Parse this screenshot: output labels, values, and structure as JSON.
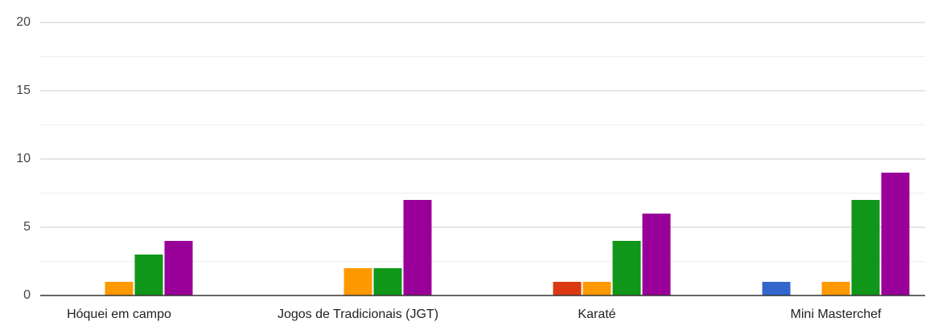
{
  "chart_data": {
    "type": "bar",
    "categories": [
      "Hóquei em campo",
      "Jogos de Tradicionais (JGT)",
      "Karaté",
      "Mini Masterchef"
    ],
    "series": [
      {
        "color": "#3366cc",
        "values": [
          0,
          0,
          0,
          1
        ]
      },
      {
        "color": "#dc3912",
        "values": [
          0,
          0,
          1,
          0
        ]
      },
      {
        "color": "#ff9900",
        "values": [
          1,
          2,
          1,
          1
        ]
      },
      {
        "color": "#109618",
        "values": [
          3,
          2,
          4,
          7
        ]
      },
      {
        "color": "#990099",
        "values": [
          4,
          7,
          6,
          9
        ]
      }
    ],
    "ylim": [
      0,
      20
    ],
    "yticks": [
      0,
      5,
      10,
      15,
      20
    ],
    "grid": true,
    "minor_grid": true
  }
}
